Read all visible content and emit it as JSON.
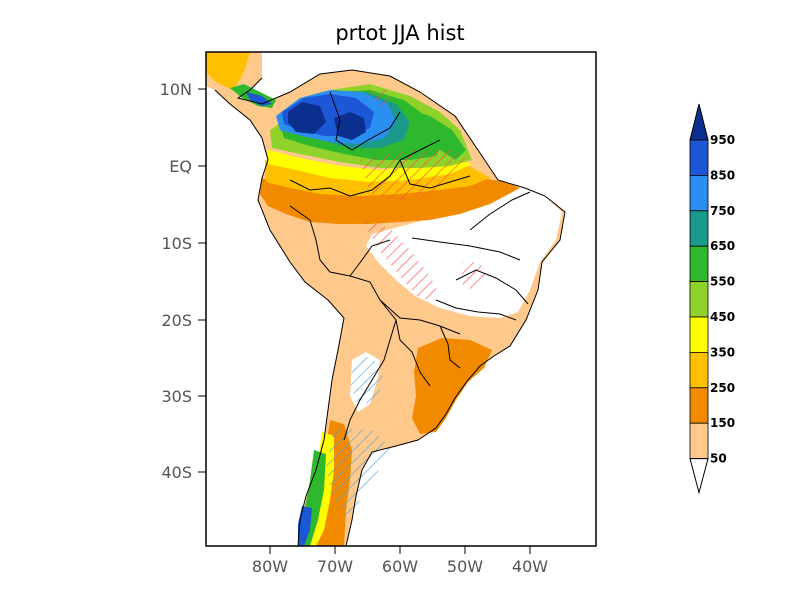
{
  "title": "prtot JJA hist",
  "x_ticks": [
    "80W",
    "70W",
    "60W",
    "50W",
    "40W"
  ],
  "y_ticks": [
    "10N",
    "EQ",
    "10S",
    "20S",
    "30S",
    "40S"
  ],
  "colorbar": {
    "labels": [
      "950",
      "850",
      "750",
      "650",
      "550",
      "450",
      "350",
      "250",
      "150",
      "50"
    ],
    "colors": [
      "#0a2f8f",
      "#1c58d6",
      "#2a8ff0",
      "#1a9a8a",
      "#2eb82e",
      "#8fd22a",
      "#ffff00",
      "#ffc000",
      "#f28a00",
      "#ffc98c",
      "#ffffff"
    ]
  },
  "hatch_colors": {
    "positive": "#ff4a4a",
    "negative": "#4aa3df"
  }
}
